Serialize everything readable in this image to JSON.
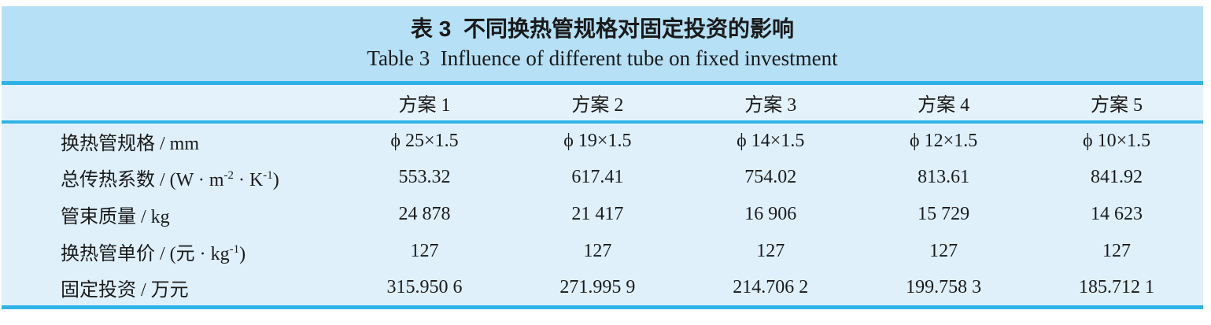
{
  "colors": {
    "title_band_bg": "#b5e0f5",
    "header_row_bg": "#e4f2fc",
    "body_bg": "#dff0fb",
    "rule": "#2fb3e6",
    "text": "#1a1a1a",
    "page_bg": "#ffffff"
  },
  "caption": {
    "zh": "表 3  不同换热管规格对固定投资的影响",
    "en": "Table 3  Influence of different tube on fixed investment"
  },
  "table": {
    "columns": [
      "",
      "方案 1",
      "方案 2",
      "方案 3",
      "方案 4",
      "方案 5"
    ],
    "rows": [
      {
        "label_parts": [
          {
            "text": "换热管规格 / mm"
          }
        ],
        "cells": [
          "ϕ 25×1.5",
          "ϕ 19×1.5",
          "ϕ 14×1.5",
          "ϕ 12×1.5",
          "ϕ 10×1.5"
        ]
      },
      {
        "label_parts": [
          {
            "text": "总传热系数 / (W · m"
          },
          {
            "text": "-2",
            "sup": true
          },
          {
            "text": " · K"
          },
          {
            "text": "-1",
            "sup": true
          },
          {
            "text": ")"
          }
        ],
        "cells": [
          "553.32",
          "617.41",
          "754.02",
          "813.61",
          "841.92"
        ]
      },
      {
        "label_parts": [
          {
            "text": "管束质量 / kg"
          }
        ],
        "cells": [
          "24 878",
          "21 417",
          "16 906",
          "15 729",
          "14 623"
        ]
      },
      {
        "label_parts": [
          {
            "text": "换热管单价 / (元 · kg"
          },
          {
            "text": "-1",
            "sup": true
          },
          {
            "text": ")"
          }
        ],
        "cells": [
          "127",
          "127",
          "127",
          "127",
          "127"
        ]
      },
      {
        "label_parts": [
          {
            "text": "固定投资 / 万元"
          }
        ],
        "cells": [
          "315.950 6",
          "271.995 9",
          "214.706 2",
          "199.758 3",
          "185.712 1"
        ]
      }
    ]
  },
  "chart_data": {
    "type": "table",
    "title": "表 3 不同换热管规格对固定投资的影响 (Table 3 Influence of different tube on fixed investment)",
    "columns": [
      "方案 1",
      "方案 2",
      "方案 3",
      "方案 4",
      "方案 5"
    ],
    "rows": [
      {
        "label": "换热管规格 / mm",
        "values": [
          "ϕ25×1.5",
          "ϕ19×1.5",
          "ϕ14×1.5",
          "ϕ12×1.5",
          "ϕ10×1.5"
        ]
      },
      {
        "label": "总传热系数 / (W·m-2·K-1)",
        "values": [
          553.32,
          617.41,
          754.02,
          813.61,
          841.92
        ]
      },
      {
        "label": "管束质量 / kg",
        "values": [
          24878,
          21417,
          16906,
          15729,
          14623
        ]
      },
      {
        "label": "换热管单价 / (元·kg-1)",
        "values": [
          127,
          127,
          127,
          127,
          127
        ]
      },
      {
        "label": "固定投资 / 万元",
        "values": [
          315.9506,
          271.9959,
          214.7062,
          199.7583,
          185.7121
        ]
      }
    ]
  }
}
